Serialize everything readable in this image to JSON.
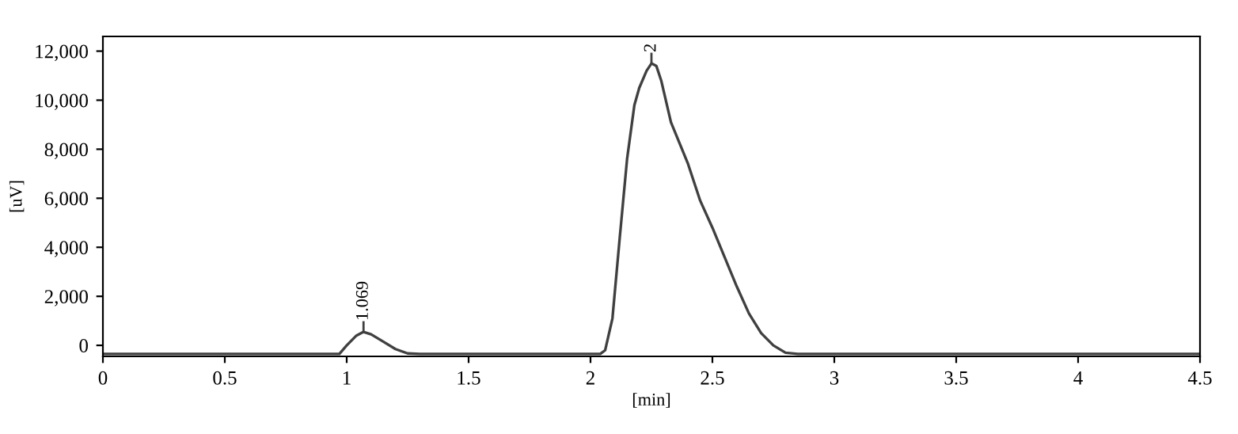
{
  "chart_data": {
    "type": "line",
    "xlabel": "[min]",
    "ylabel": "[uV]",
    "xlim": [
      0,
      4.5
    ],
    "ylim": [
      -450,
      12600
    ],
    "xticks": [
      0,
      0.5,
      1,
      1.5,
      2,
      2.5,
      3,
      3.5,
      4,
      4.5
    ],
    "yticks": [
      0,
      {
        "value": 2000,
        "label": "2,000"
      },
      {
        "value": 4000,
        "label": "4,000"
      },
      {
        "value": 6000,
        "label": "6,000"
      },
      {
        "value": 8000,
        "label": "8,000"
      },
      {
        "value": 10000,
        "label": "10,000"
      },
      {
        "value": 12000,
        "label": "12,000"
      }
    ],
    "grid": false,
    "marker": "none",
    "line_style": "solid",
    "series": [
      {
        "color": "#404040",
        "x": [
          0,
          0.97,
          1.0,
          1.04,
          1.069,
          1.1,
          1.15,
          1.2,
          1.25,
          1.3,
          2.04,
          2.06,
          2.09,
          2.12,
          2.15,
          2.18,
          2.2,
          2.23,
          2.25,
          2.27,
          2.29,
          2.33,
          2.4,
          2.45,
          2.5,
          2.55,
          2.6,
          2.65,
          2.7,
          2.75,
          2.8,
          2.85,
          4.5
        ],
        "values": [
          -350,
          -350,
          0,
          400,
          550,
          450,
          150,
          -150,
          -330,
          -350,
          -350,
          -200,
          1100,
          4400,
          7600,
          9800,
          10500,
          11200,
          11500,
          11400,
          10800,
          9100,
          7400,
          5900,
          4800,
          3600,
          2400,
          1300,
          500,
          0,
          -300,
          -350,
          -350
        ]
      }
    ],
    "annotations": [
      {
        "text": "1.069",
        "x": 1.069,
        "y": 550
      },
      {
        "text": "2",
        "x": 2.25,
        "y": 11500
      }
    ]
  }
}
